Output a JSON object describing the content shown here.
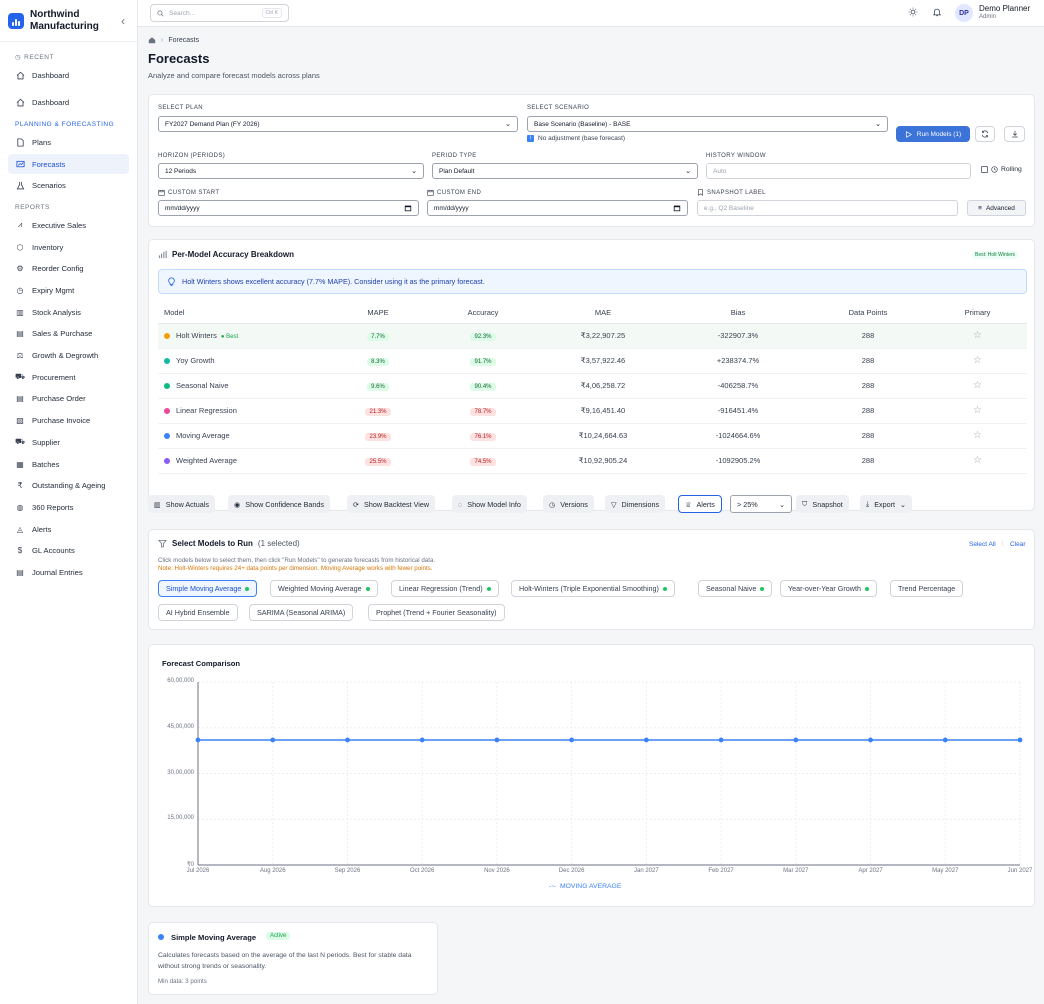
{
  "brand": {
    "name_line1": "Northwind",
    "name_line2": "Manufacturing"
  },
  "sidebar": {
    "recent_label": "RECENT",
    "recent_item": "Dashboard",
    "dashboard": "Dashboard",
    "planning_label": "PLANNING & FORECASTING",
    "planning_items": [
      "Plans",
      "Forecasts",
      "Scenarios"
    ],
    "reports_label": "REPORTS",
    "reports_items": [
      "Executive Sales",
      "Inventory",
      "Reorder Config",
      "Expiry Mgmt",
      "Stock Analysis",
      "Sales & Purchase",
      "Growth & Degrowth",
      "Procurement",
      "Purchase Order",
      "Purchase Invoice",
      "Supplier",
      "Batches",
      "Outstanding & Ageing",
      "360 Reports",
      "Alerts",
      "GL Accounts",
      "Journal Entries"
    ]
  },
  "topbar": {
    "search_placeholder": "Search...",
    "shortcut": "Ctrl K",
    "user_initials": "DP",
    "user_name": "Demo Planner",
    "user_role": "Admin"
  },
  "page": {
    "breadcrumb": "Forecasts",
    "title": "Forecasts",
    "subtitle": "Analyze and compare forecast models across plans"
  },
  "filters": {
    "plan_label": "SELECT PLAN",
    "plan_value": "FY2027 Demand Plan (FY 2026)",
    "scenario_label": "SELECT SCENARIO",
    "scenario_value": "Base Scenario (Baseline) - BASE",
    "scenario_note": "No adjustment (base forecast)",
    "run_label": "Run Models (1)",
    "horizon_label": "HORIZON (PERIODS)",
    "horizon_value": "12 Periods",
    "period_label": "PERIOD TYPE",
    "period_value": "Plan Default",
    "history_label": "HISTORY WINDOW",
    "history_placeholder": "Auto",
    "rolling_label": "Rolling",
    "start_label": "CUSTOM START",
    "start_placeholder": "mm/dd/yyyy",
    "end_label": "CUSTOM END",
    "end_placeholder": "mm/dd/yyyy",
    "snapshot_label": "SNAPSHOT LABEL",
    "snapshot_placeholder": "e.g., Q2 Baseline",
    "advanced_label": "Advanced"
  },
  "accuracy": {
    "title": "Per-Model Accuracy Breakdown",
    "best_badge": "Best: Holt Winters",
    "banner": "Holt Winters shows excellent accuracy (7.7% MAPE). Consider using it as the primary forecast.",
    "columns": [
      "Model",
      "MAPE",
      "Accuracy",
      "MAE",
      "Bias",
      "Data Points",
      "Primary"
    ],
    "best_tag": "Best",
    "rows": [
      {
        "model": "Holt Winters",
        "color": "#f59e0b",
        "mape": "7.7%",
        "accuracy": "92.3%",
        "mae": "₹3,22,907.25",
        "bias": "-322907.3%",
        "points": "288"
      },
      {
        "model": "Yoy Growth",
        "color": "#14b8a6",
        "mape": "8.3%",
        "accuracy": "91.7%",
        "mae": "₹3,57,922.46",
        "bias": "+238374.7%",
        "points": "288"
      },
      {
        "model": "Seasonal Naive",
        "color": "#10b981",
        "mape": "9.6%",
        "accuracy": "90.4%",
        "mae": "₹4,06,258.72",
        "bias": "-406258.7%",
        "points": "288"
      },
      {
        "model": "Linear Regression",
        "color": "#ec4899",
        "mape": "21.3%",
        "accuracy": "78.7%",
        "mae": "₹9,16,451.40",
        "bias": "-916451.4%",
        "points": "288"
      },
      {
        "model": "Moving Average",
        "color": "#3b82f6",
        "mape": "23.9%",
        "accuracy": "76.1%",
        "mae": "₹10,24,664.63",
        "bias": "-1024664.6%",
        "points": "288"
      },
      {
        "model": "Weighted Average",
        "color": "#8b5cf6",
        "mape": "25.5%",
        "accuracy": "74.5%",
        "mae": "₹10,92,905.24",
        "bias": "-1092905.2%",
        "points": "288"
      }
    ]
  },
  "toolbar": {
    "show_actuals": "Show Actuals",
    "show_bands": "Show Confidence Bands",
    "show_backtest": "Show Backtest View",
    "show_model_info": "Show Model Info",
    "versions": "Versions",
    "dimensions": "Dimensions",
    "alerts": "Alerts",
    "threshold": "> 25%",
    "snapshot": "Snapshot",
    "export": "Export"
  },
  "models": {
    "title": "Select Models to Run",
    "selected_count": "(1 selected)",
    "select_all": "Select All",
    "clear": "Clear",
    "hint": "Click models below to select them, then click \"Run Models\" to generate forecasts from historical data.",
    "note": "Note: Holt-Winters requires 24+ data points per dimension. Moving Average works with fewer points.",
    "chips_row1": [
      "Simple Moving Average",
      "Weighted Moving Average",
      "Linear Regression (Trend)",
      "Holt-Winters (Triple Exponential Smoothing)",
      "Seasonal Naive",
      "Year-over-Year Growth",
      "Trend Percentage"
    ],
    "chips_row2": [
      "AI Hybrid Ensemble",
      "SARIMA (Seasonal ARIMA)",
      "Prophet (Trend + Fourier Seasonality)"
    ]
  },
  "chart_data": {
    "type": "line",
    "title": "Forecast Comparison",
    "x": [
      "Jul 2026",
      "Aug 2026",
      "Sep 2026",
      "Oct 2026",
      "Nov 2026",
      "Dec 2026",
      "Jan 2027",
      "Feb 2027",
      "Mar 2027",
      "Apr 2027",
      "May 2027",
      "Jun 2027"
    ],
    "y_ticks": [
      "₹0",
      "15,00,000",
      "30,00,000",
      "45,00,000",
      "60,00,000"
    ],
    "ylim": [
      0,
      6000000
    ],
    "series": [
      {
        "name": "MOVING AVERAGE",
        "color": "#3b82f6",
        "values": [
          4100000,
          4100000,
          4100000,
          4100000,
          4100000,
          4100000,
          4100000,
          4100000,
          4100000,
          4100000,
          4100000,
          4100000
        ]
      }
    ],
    "grid": true,
    "legend": "bottom-center"
  },
  "info_card": {
    "title": "Simple Moving Average",
    "status": "Active",
    "description": "Calculates forecasts based on the average of the last N periods. Best for stable data without strong trends or seasonality.",
    "min_data": "Min data: 3 points"
  }
}
